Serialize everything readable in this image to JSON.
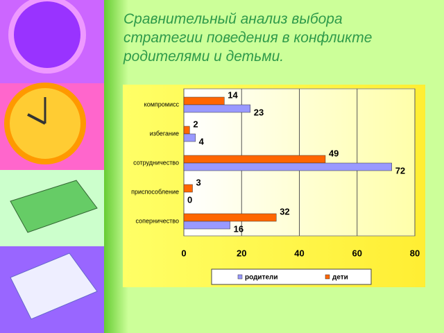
{
  "title_lines": [
    "Сравнительный анализ выбора",
    "стратегии поведения в конфликте",
    "родителями и детьми."
  ],
  "chart_data": {
    "type": "hbar",
    "categories": [
      "компромисс",
      "избегание",
      "сотрудничество",
      "приспособление",
      "соперничество"
    ],
    "series": [
      {
        "name": "дети",
        "color": "#ff6600",
        "values": [
          14,
          2,
          49,
          3,
          32
        ]
      },
      {
        "name": "родители",
        "color": "#9999ff",
        "values": [
          23,
          4,
          72,
          0,
          16
        ]
      }
    ],
    "xlim": [
      0,
      80
    ],
    "xticks": [
      0,
      20,
      40,
      60,
      80
    ],
    "grid": true,
    "legend": "bottom"
  }
}
